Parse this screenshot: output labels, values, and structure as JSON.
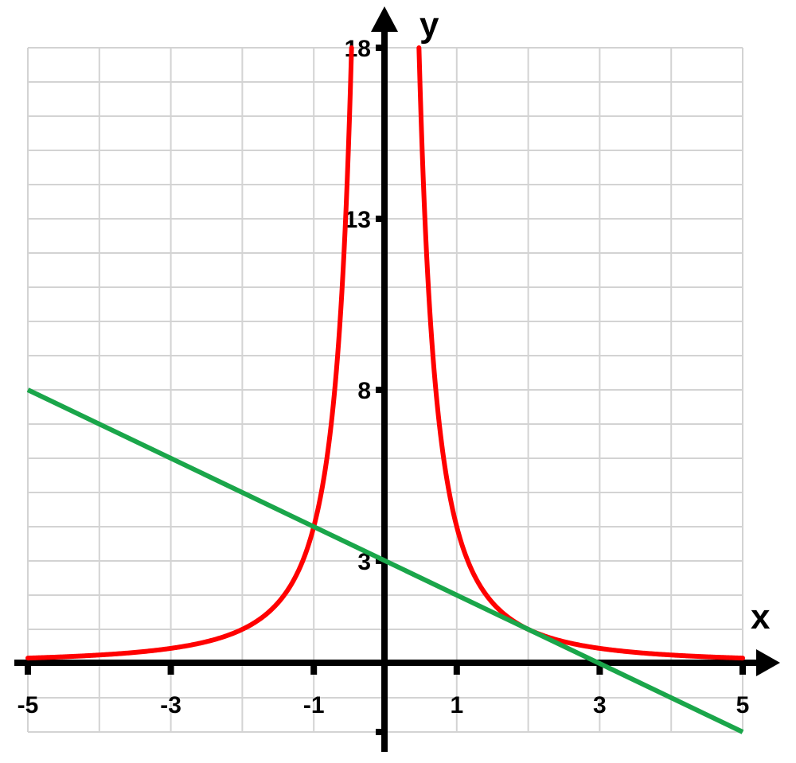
{
  "chart_data": {
    "type": "line",
    "xlabel": "x",
    "ylabel": "y",
    "xlim": [
      -5,
      5
    ],
    "ylim": [
      -2,
      18
    ],
    "x_ticks": [
      -5,
      -3,
      -1,
      1,
      3,
      5
    ],
    "y_ticks": [
      3,
      8,
      13,
      18
    ],
    "grid": true,
    "series": [
      {
        "color": "#ff0000",
        "formula": "y = 4/x^2",
        "x": [
          -5,
          -4,
          -3,
          -2.5,
          -2,
          -1.5,
          -1,
          -0.8,
          -0.6,
          -0.47,
          0.47,
          0.6,
          0.8,
          1,
          1.5,
          2,
          2.5,
          3,
          4,
          5
        ],
        "y": [
          0.16,
          0.25,
          0.44,
          0.64,
          1,
          1.78,
          4,
          6.25,
          11.1,
          18,
          18,
          11.1,
          6.25,
          4,
          1.78,
          1,
          0.64,
          0.44,
          0.25,
          0.16
        ]
      },
      {
        "color": "#1aa64a",
        "formula": "y = 3 - x",
        "x": [
          -5,
          5
        ],
        "y": [
          8,
          -2
        ]
      }
    ]
  }
}
